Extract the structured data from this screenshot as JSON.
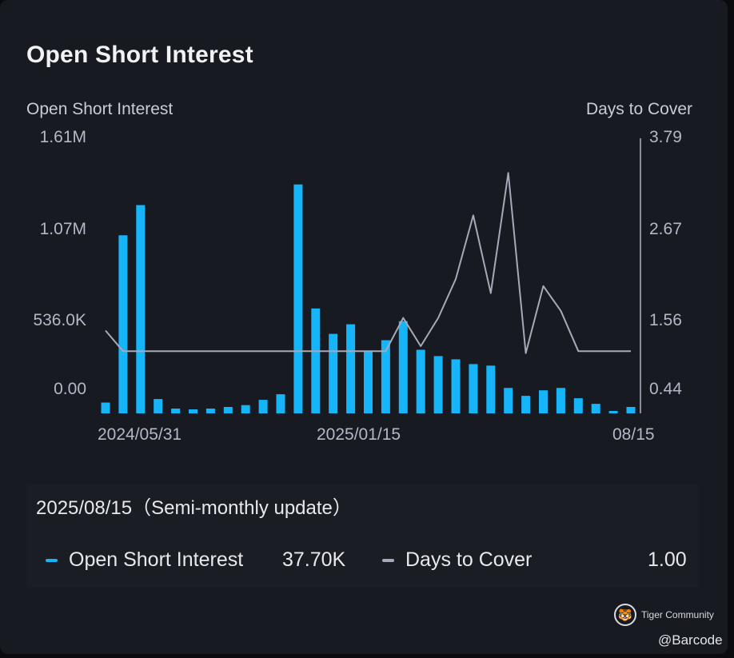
{
  "title": "Open Short Interest",
  "colors": {
    "bar": "#16b4f8",
    "line": "#a7a9b9",
    "background": "#181a22"
  },
  "chart_data": {
    "type": "bar",
    "title": "Open Short Interest",
    "left_axis": {
      "label": "Open Short Interest",
      "ticks": [
        "1.61M",
        "1.07M",
        "536.0K",
        "0.00"
      ],
      "ylim": [
        -120000,
        1610000
      ]
    },
    "right_axis": {
      "label": "Days to Cover",
      "ticks": [
        "3.79",
        "2.67",
        "1.56",
        "0.44"
      ],
      "ylim": [
        -0.1,
        3.79
      ]
    },
    "x_ticks": [
      "2024/05/31",
      "2025/01/15",
      "08/15"
    ],
    "series": [
      {
        "name": "Open Short Interest",
        "type": "bar",
        "axis": "left",
        "values": [
          -52000,
          1000000,
          1190000,
          -30000,
          -90000,
          -95000,
          -90000,
          -80000,
          -68000,
          -35000,
          0,
          1320000,
          540000,
          380000,
          440000,
          270000,
          340000,
          460000,
          280000,
          240000,
          220000,
          190000,
          180000,
          40000,
          -10000,
          25000,
          40000,
          -25000,
          -60000,
          -110000,
          -80000
        ]
      },
      {
        "name": "Days to Cover",
        "type": "line",
        "axis": "right",
        "values": [
          1.07,
          0.78,
          0.78,
          0.78,
          0.78,
          0.78,
          0.78,
          0.78,
          0.78,
          0.78,
          0.78,
          0.78,
          0.78,
          0.78,
          0.78,
          0.78,
          0.78,
          1.25,
          0.85,
          1.25,
          1.8,
          2.7,
          1.6,
          3.3,
          0.75,
          1.7,
          1.35,
          0.78,
          0.78,
          0.78,
          0.78
        ]
      }
    ],
    "grid": false
  },
  "info": {
    "update_label": "2025/08/15（Semi-monthly update）",
    "legend_osi_label": "Open Short Interest",
    "legend_osi_value": "37.70K",
    "legend_dtc_label": "Days to Cover",
    "legend_dtc_value": "1.00"
  },
  "brand": {
    "logo_glyph": "🐯",
    "name": "Tiger Community",
    "handle": "@Barcode"
  }
}
